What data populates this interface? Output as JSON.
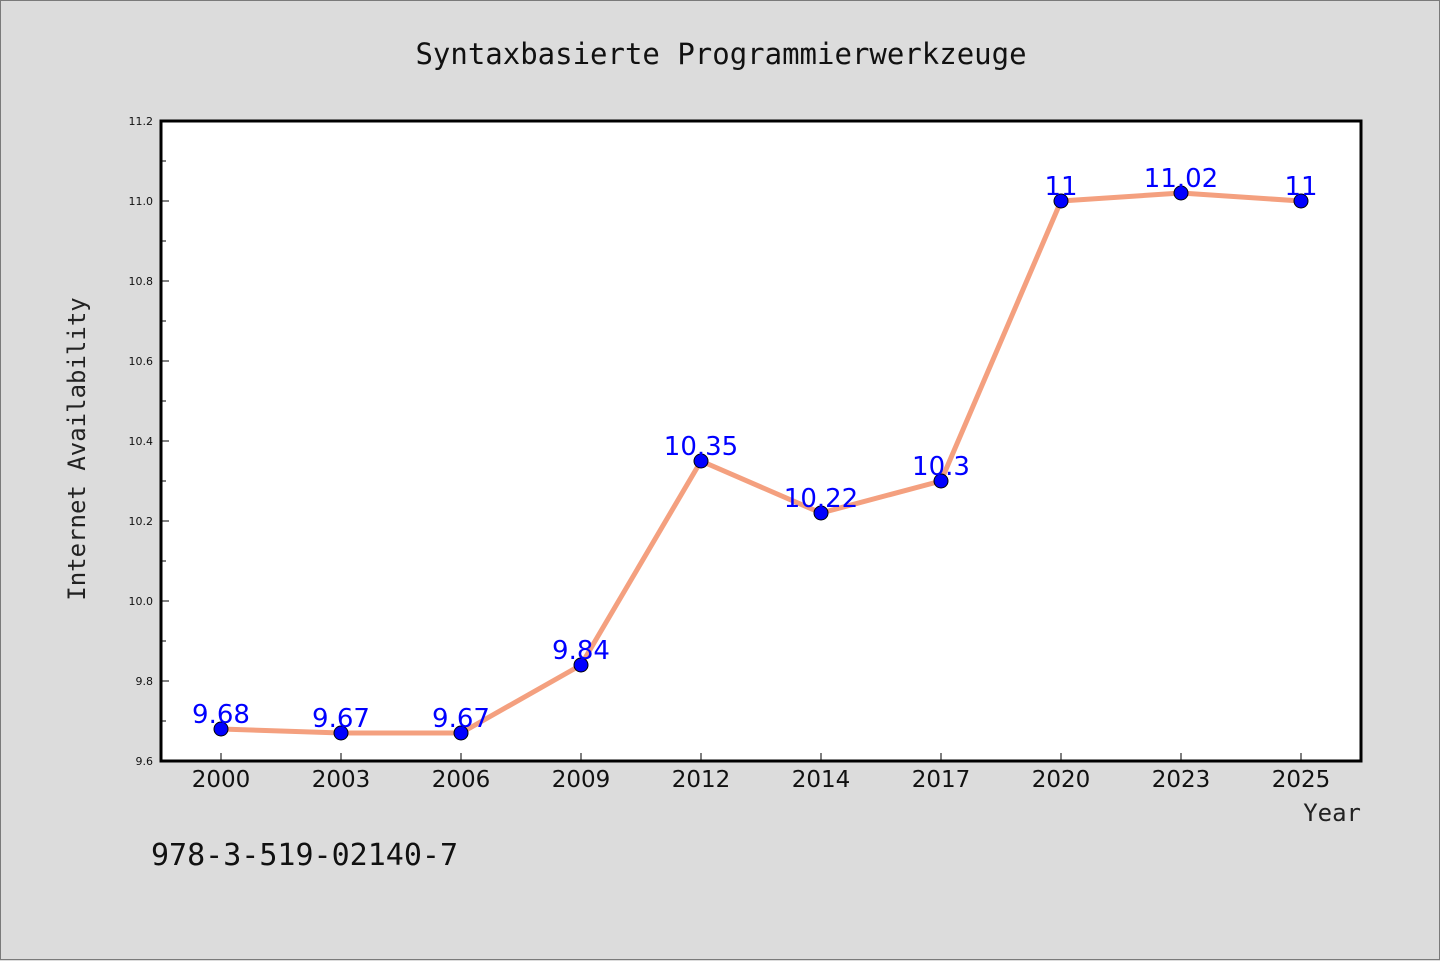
{
  "chart_data": {
    "type": "line",
    "title": "Syntaxbasierte Programmierwerkzeuge",
    "xlabel": "Year",
    "ylabel": "Internet Availability",
    "categories": [
      "2000",
      "2003",
      "2006",
      "2009",
      "2012",
      "2014",
      "2017",
      "2020",
      "2023",
      "2025"
    ],
    "series": [
      {
        "values": [
          9.68,
          9.67,
          9.67,
          9.84,
          10.35,
          10.22,
          10.3,
          11,
          11.02,
          11
        ],
        "data_labels": [
          "9.68",
          "9.67",
          "9.67",
          "9.84",
          "10.35",
          "10.22",
          "10.3",
          "11",
          "11.02",
          "11"
        ],
        "line_color": "#f4a07f",
        "marker_color": "#0000ff"
      }
    ],
    "ylim": [
      9.6,
      11.2
    ],
    "yticks": [
      "9.6",
      "9.8",
      "10.0",
      "10.2",
      "10.4",
      "10.6",
      "10.8",
      "11.0",
      "11.2"
    ],
    "grid": false,
    "legend": "none"
  },
  "footer": {
    "text": "978-3-519-02140-7"
  },
  "colors": {
    "figure_background": "#dcdcdc",
    "plot_background": "#ffffff",
    "line": "#f4a07f",
    "markers": "#0000ff",
    "data_labels": "#0000ff"
  }
}
